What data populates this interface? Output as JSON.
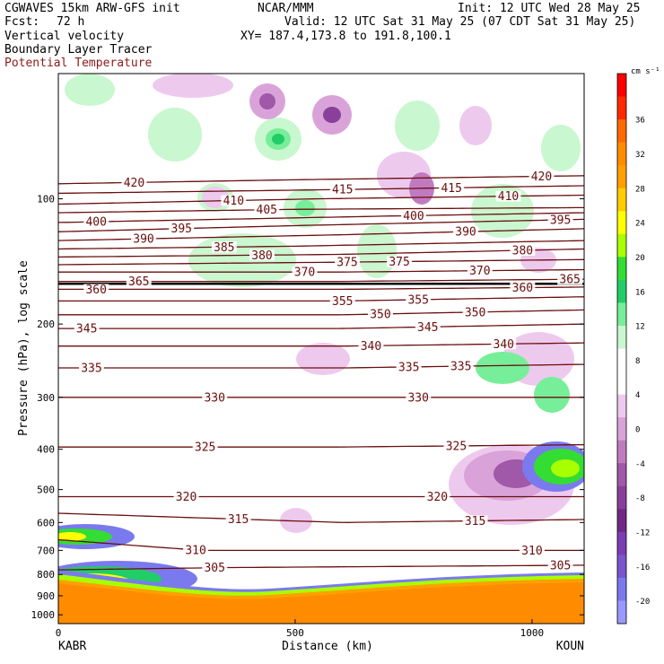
{
  "header": {
    "model": "CGWAVES 15km ARW-GFS init",
    "center": "NCAR/MMM",
    "init": "Init: 12 UTC Wed 28 May 25",
    "fcst_label": "Fcst:",
    "fcst_value": "72 h",
    "valid": "Valid: 12 UTC Sat 31 May 25 (07 CDT Sat 31 May 25)",
    "field1": "Vertical velocity",
    "xy": "XY= 187.4,173.8 to 191.8,100.1",
    "field2": "Boundary Layer Tracer",
    "field3": "Potential Temperature"
  },
  "colors": {
    "theta": "#6b0f0f",
    "plot_border": "#000000"
  },
  "chart_data": {
    "type": "heatmap",
    "title": "",
    "xlabel": "Distance (km)",
    "ylabel": "Pressure (hPa), log scale",
    "xlim": [
      0,
      1110
    ],
    "ylim": [
      1050,
      50
    ],
    "y_scale": "log",
    "x_ticks": [
      0,
      500,
      1000
    ],
    "y_ticks": [
      100,
      200,
      300,
      400,
      500,
      600,
      700,
      800,
      900,
      1000
    ],
    "left_station": "KABR",
    "right_station": "KOUN",
    "colorbar": {
      "unit": "cm s⁻¹",
      "labels": [
        36,
        32,
        28,
        24,
        20,
        16,
        12,
        8,
        4,
        0,
        -4,
        -8,
        -12,
        -16,
        -20
      ],
      "colors": [
        "#ff0000",
        "#ff2a00",
        "#ff6a00",
        "#ff8c00",
        "#ffa000",
        "#ffcc00",
        "#ffff00",
        "#a8ff00",
        "#33dd33",
        "#22cc66",
        "#77ee99",
        "#c9f7cf",
        "#ffffff",
        "#ffffff",
        "#eec9ee",
        "#d9a3d9",
        "#c07bc0",
        "#a058a8",
        "#88409a",
        "#702888",
        "#7b3db0",
        "#7a55cc",
        "#7a7aee",
        "#9999ff"
      ]
    },
    "theta_contours": [
      {
        "label": "420",
        "values": [
          [
            0,
            92
          ],
          [
            500,
            90
          ],
          [
            1110,
            88
          ]
        ],
        "label_positions": [
          [
            160
          ],
          [
            1020
          ]
        ]
      },
      {
        "label": "415",
        "values": [
          [
            0,
            97
          ],
          [
            600,
            95
          ],
          [
            1110,
            93
          ]
        ],
        "label_positions": [
          [
            600
          ],
          [
            830
          ]
        ]
      },
      {
        "label": "410",
        "values": [
          [
            0,
            103
          ],
          [
            550,
            100
          ],
          [
            1110,
            98
          ]
        ],
        "label_positions": [
          [
            370
          ],
          [
            950
          ]
        ]
      },
      {
        "label": "405",
        "values": [
          [
            0,
            108
          ],
          [
            500,
            106
          ],
          [
            1110,
            105
          ]
        ],
        "label_positions": [
          [
            440
          ]
        ]
      },
      {
        "label": "400",
        "values": [
          [
            0,
            114
          ],
          [
            700,
            110
          ],
          [
            1110,
            108
          ]
        ],
        "label_positions": [
          [
            80
          ],
          [
            750
          ]
        ]
      },
      {
        "label": "395",
        "values": [
          [
            0,
            120
          ],
          [
            500,
            116
          ],
          [
            1110,
            112
          ]
        ],
        "label_positions": [
          [
            260
          ],
          [
            1060
          ]
        ]
      },
      {
        "label": "390",
        "values": [
          [
            0,
            126
          ],
          [
            600,
            122
          ],
          [
            1110,
            118
          ]
        ],
        "label_positions": [
          [
            180
          ],
          [
            860
          ]
        ]
      },
      {
        "label": "385",
        "values": [
          [
            0,
            132
          ],
          [
            500,
            130
          ],
          [
            1110,
            126
          ]
        ],
        "label_positions": [
          [
            350
          ]
        ]
      },
      {
        "label": "380",
        "values": [
          [
            0,
            138
          ],
          [
            600,
            136
          ],
          [
            1110,
            132
          ]
        ],
        "label_positions": [
          [
            430
          ],
          [
            980
          ]
        ]
      },
      {
        "label": "375",
        "values": [
          [
            0,
            144
          ],
          [
            600,
            142
          ],
          [
            1110,
            140
          ]
        ],
        "label_positions": [
          [
            610
          ],
          [
            720
          ]
        ]
      },
      {
        "label": "370",
        "values": [
          [
            0,
            150
          ],
          [
            600,
            150
          ],
          [
            1110,
            148
          ]
        ],
        "label_positions": [
          [
            520
          ],
          [
            890
          ]
        ]
      },
      {
        "label": "365",
        "values": [
          [
            0,
            158
          ],
          [
            600,
            158
          ],
          [
            1110,
            156
          ]
        ],
        "label_positions": [
          [
            170
          ],
          [
            1080
          ]
        ]
      },
      {
        "label": "360",
        "values": [
          [
            0,
            165
          ],
          [
            600,
            165
          ],
          [
            1110,
            163
          ]
        ],
        "label_positions": [
          [
            80
          ],
          [
            980
          ]
        ]
      },
      {
        "label": "355",
        "values": [
          [
            0,
            176
          ],
          [
            600,
            176
          ],
          [
            1110,
            172
          ]
        ],
        "label_positions": [
          [
            600
          ],
          [
            760
          ]
        ]
      },
      {
        "label": "350",
        "values": [
          [
            0,
            190
          ],
          [
            600,
            190
          ],
          [
            1110,
            185
          ]
        ],
        "label_positions": [
          [
            680
          ],
          [
            880
          ]
        ]
      },
      {
        "label": "345",
        "values": [
          [
            0,
            205
          ],
          [
            600,
            205
          ],
          [
            1110,
            200
          ]
        ],
        "label_positions": [
          [
            60
          ],
          [
            780
          ]
        ]
      },
      {
        "label": "340",
        "values": [
          [
            0,
            226
          ],
          [
            600,
            226
          ],
          [
            1110,
            222
          ]
        ],
        "label_positions": [
          [
            660
          ],
          [
            940
          ]
        ]
      },
      {
        "label": "335",
        "values": [
          [
            0,
            255
          ],
          [
            600,
            255
          ],
          [
            1110,
            250
          ]
        ],
        "label_positions": [
          [
            70
          ],
          [
            740
          ],
          [
            850
          ]
        ]
      },
      {
        "label": "330",
        "values": [
          [
            0,
            300
          ],
          [
            600,
            300
          ],
          [
            1110,
            300
          ]
        ],
        "label_positions": [
          [
            330
          ],
          [
            760
          ]
        ]
      },
      {
        "label": "325",
        "values": [
          [
            0,
            395
          ],
          [
            600,
            395
          ],
          [
            1110,
            390
          ]
        ],
        "label_positions": [
          [
            310
          ],
          [
            840
          ]
        ]
      },
      {
        "label": "320",
        "values": [
          [
            0,
            520
          ],
          [
            500,
            520
          ],
          [
            1110,
            520
          ]
        ],
        "label_positions": [
          [
            270
          ],
          [
            800
          ]
        ]
      },
      {
        "label": "315",
        "values": [
          [
            0,
            570
          ],
          [
            600,
            600
          ],
          [
            1110,
            590
          ]
        ],
        "label_positions": [
          [
            380
          ],
          [
            880
          ]
        ]
      },
      {
        "label": "310",
        "values": [
          [
            0,
            660
          ],
          [
            300,
            700
          ],
          [
            1110,
            700
          ]
        ],
        "label_positions": [
          [
            290
          ],
          [
            1000
          ]
        ]
      },
      {
        "label": "305",
        "values": [
          [
            0,
            780
          ],
          [
            350,
            770
          ],
          [
            1110,
            760
          ]
        ],
        "label_positions": [
          [
            330
          ],
          [
            1060
          ]
        ]
      }
    ],
    "tropopause_pressure": 160
  }
}
